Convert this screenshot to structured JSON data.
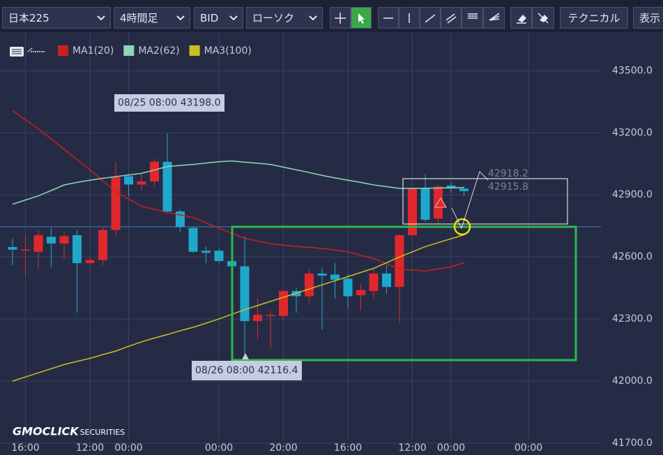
{
  "toolbar": {
    "symbol": "日本225",
    "timeframe": "4時間足",
    "price_type": "BID",
    "chart_style": "ローソク",
    "technical": "テクニカル",
    "display": "表示"
  },
  "logo": {
    "brand": "GMOCLICK",
    "suffix": "SECURITIES"
  },
  "chart_data": {
    "type": "candlestick",
    "categories": [
      null,
      "16:00",
      null,
      null,
      null,
      null,
      "12:00",
      null,
      null,
      "00:00",
      null,
      null,
      null,
      null,
      null,
      null,
      "00:00",
      null,
      null,
      null,
      null,
      "20:00",
      null,
      null,
      null,
      null,
      "16:00",
      null,
      null,
      null,
      null,
      "12:00",
      null,
      null,
      "00:00",
      null,
      null,
      null,
      null,
      null,
      "00:00",
      null,
      null,
      null,
      null
    ],
    "open": [
      42648,
      42632,
      42625,
      42697,
      42665,
      42705,
      42570,
      42585,
      42730,
      42990,
      42950,
      42965,
      43060,
      42820,
      42740,
      42630,
      42630,
      42580,
      42555,
      42290,
      42320,
      42315,
      42435,
      42410,
      42520,
      42515,
      42495,
      42415,
      42435,
      42520,
      42455,
      42705,
      42930,
      42785,
      42945,
      42930,
      null,
      null,
      null,
      null,
      null,
      null,
      null,
      null,
      null
    ],
    "high": [
      42690,
      42705,
      42730,
      42740,
      42720,
      42730,
      42600,
      42745,
      43060,
      43000,
      43000,
      43075,
      43198,
      42830,
      42745,
      42650,
      42640,
      42590,
      42700,
      42400,
      42340,
      42440,
      42450,
      42540,
      42550,
      42570,
      42520,
      42470,
      42540,
      42560,
      42710,
      42940,
      43000,
      42950,
      42960,
      42940,
      null,
      null,
      null,
      null,
      null,
      null,
      null,
      null,
      null
    ],
    "low": [
      42560,
      42510,
      42545,
      42550,
      42590,
      42330,
      42560,
      42560,
      42700,
      42890,
      42920,
      42940,
      42810,
      42720,
      42620,
      42570,
      42570,
      42520,
      42116.4,
      42200,
      42160,
      42300,
      42330,
      42380,
      42250,
      42400,
      42350,
      42340,
      42400,
      42420,
      42280,
      42700,
      42770,
      42760,
      42910,
      42895,
      null,
      null,
      null,
      null,
      null,
      null,
      null,
      null,
      null
    ],
    "close": [
      42635,
      42636,
      42705,
      42665,
      42700,
      42570,
      42585,
      42730,
      42985,
      42950,
      42965,
      43060,
      42820,
      42745,
      42625,
      42620,
      42580,
      42555,
      42290,
      42320,
      42320,
      42435,
      42410,
      42520,
      42510,
      42490,
      42410,
      42440,
      42520,
      42455,
      42705,
      42930,
      42780,
      42940,
      42935,
      42918.2,
      null,
      null,
      null,
      null,
      null,
      null,
      null,
      null,
      null
    ],
    "up_color": "#e0282c",
    "down_color": "#1ea8cc",
    "series": [
      {
        "name": "MA1(20)",
        "color": "#c8201e",
        "values": [
          43308,
          43263,
          43219,
          43170,
          43120,
          43070,
          43021,
          42968,
          42915,
          42880,
          42845,
          42830,
          42815,
          42803,
          42790,
          42765,
          42739,
          42715,
          42690,
          42677,
          42664,
          42657,
          42651,
          42646,
          42641,
          42633,
          42625,
          42608,
          42592,
          42567,
          42542,
          42537,
          42532,
          42542,
          42552,
          42572,
          null,
          null,
          null,
          null,
          null,
          null,
          null,
          null,
          null
        ]
      },
      {
        "name": "MA2(62)",
        "color": "#8fd6b6",
        "values": [
          42855,
          42875,
          42895,
          42921,
          42948,
          42960,
          42971,
          42980,
          42988,
          42996,
          43004,
          43020,
          43037,
          43042,
          43047,
          43054,
          43060,
          43064,
          43058,
          43053,
          43047,
          43034,
          43021,
          43008,
          42994,
          42982,
          42971,
          42960,
          42948,
          42940,
          42931,
          42931,
          42932,
          42933,
          42934,
          42935,
          null,
          null,
          null,
          null,
          null,
          null,
          null,
          null,
          null
        ]
      },
      {
        "name": "MA3(100)",
        "color": "#c8c020",
        "values": [
          42000,
          42020,
          42040,
          42060,
          42080,
          42095,
          42110,
          42128,
          42145,
          42168,
          42190,
          42208,
          42225,
          42243,
          42260,
          42280,
          42300,
          42323,
          42345,
          42365,
          42385,
          42405,
          42425,
          42445,
          42465,
          42485,
          42505,
          42525,
          42545,
          42572,
          42600,
          42625,
          42650,
          42669,
          42688,
          42707,
          null,
          null,
          null,
          null,
          null,
          null,
          null,
          null,
          null
        ]
      }
    ],
    "ylim": [
      41690,
      43690
    ],
    "yticks": [
      {
        "value": 41700,
        "label": "41700.0"
      },
      {
        "value": 42000,
        "label": "42000.0"
      },
      {
        "value": 42300,
        "label": "42300.0"
      },
      {
        "value": 42600,
        "label": "42600.0"
      },
      {
        "value": 42900,
        "label": "42900.0"
      },
      {
        "value": 43200,
        "label": "43200.0"
      },
      {
        "value": 43500,
        "label": "43500.0"
      }
    ],
    "grid": true,
    "annotations": [
      "08/25 08:00 43198.0",
      "08/26 08:00 42116.4",
      "42918.2",
      "42915.8"
    ]
  }
}
